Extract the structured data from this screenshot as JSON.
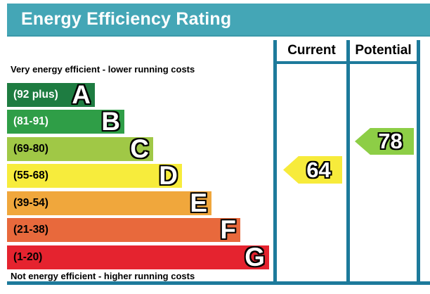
{
  "title_bar": {
    "title": "Energy Efficiency Rating",
    "background": "#44a6b6",
    "text_color": "#ffffff"
  },
  "table": {
    "border_color": "#1d7a9b",
    "columns": [
      {
        "label": "Current"
      },
      {
        "label": "Potential"
      }
    ]
  },
  "captions": {
    "top": "Very energy efficient - lower running costs",
    "bottom": "Not energy efficient - higher running costs"
  },
  "chart_data": {
    "type": "bar",
    "title": "Energy Efficiency Rating",
    "categories": [
      "A",
      "B",
      "C",
      "D",
      "E",
      "F",
      "G"
    ],
    "ranges": [
      "(92 plus)",
      "(81-91)",
      "(69-80)",
      "(55-68)",
      "(39-54)",
      "(21-38)",
      "(1-20)"
    ],
    "range_bounds": [
      [
        92,
        100
      ],
      [
        81,
        91
      ],
      [
        69,
        80
      ],
      [
        55,
        68
      ],
      [
        39,
        54
      ],
      [
        21,
        38
      ],
      [
        1,
        20
      ]
    ],
    "band_colors": [
      "#1e7c41",
      "#2f9e47",
      "#a0c846",
      "#f7ec3c",
      "#f0a73c",
      "#e8693c",
      "#e5232f"
    ],
    "band_label_colors": [
      "#ffffff",
      "#ffffff",
      "#000000",
      "#000000",
      "#000000",
      "#000000",
      "#000000"
    ],
    "annotations": [
      "Very energy efficient - lower running costs",
      "Not energy efficient - higher running costs"
    ],
    "current": {
      "label": "Current",
      "value": 64,
      "band": "D",
      "arrow_color": "#f7eb3b"
    },
    "potential": {
      "label": "Potential",
      "value": 78,
      "band": "C",
      "arrow_color": "#8dce46"
    }
  }
}
